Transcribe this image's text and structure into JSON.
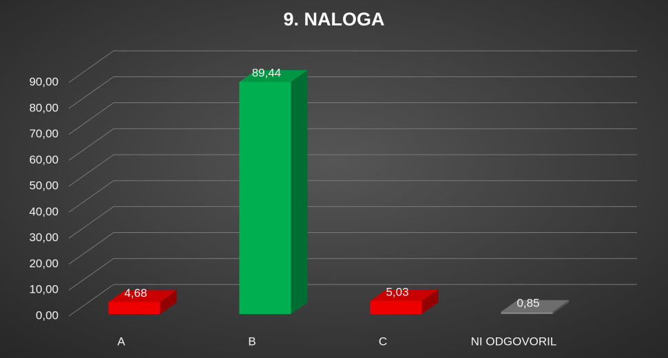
{
  "chart_data": {
    "type": "bar3d",
    "title": "9. NALOGA",
    "categories": [
      "A",
      "B",
      "C",
      "NI ODGOVORIL"
    ],
    "values": [
      4.68,
      89.44,
      5.03,
      0.85
    ],
    "value_labels": [
      "4,68",
      "89,44",
      "5,03",
      "0,85"
    ],
    "colors": [
      "#ee0000",
      "#00b050",
      "#ee0000",
      "#808080"
    ],
    "ylim": [
      0,
      90
    ],
    "yticks": [
      {
        "value": 0,
        "label": "0,00"
      },
      {
        "value": 10,
        "label": "10,00"
      },
      {
        "value": 20,
        "label": "20,00"
      },
      {
        "value": 30,
        "label": "30,00"
      },
      {
        "value": 40,
        "label": "40,00"
      },
      {
        "value": 50,
        "label": "50,00"
      },
      {
        "value": 60,
        "label": "60,00"
      },
      {
        "value": 70,
        "label": "70,00"
      },
      {
        "value": 80,
        "label": "80,00"
      },
      {
        "value": 90,
        "label": "90,00"
      }
    ],
    "grid": true
  }
}
